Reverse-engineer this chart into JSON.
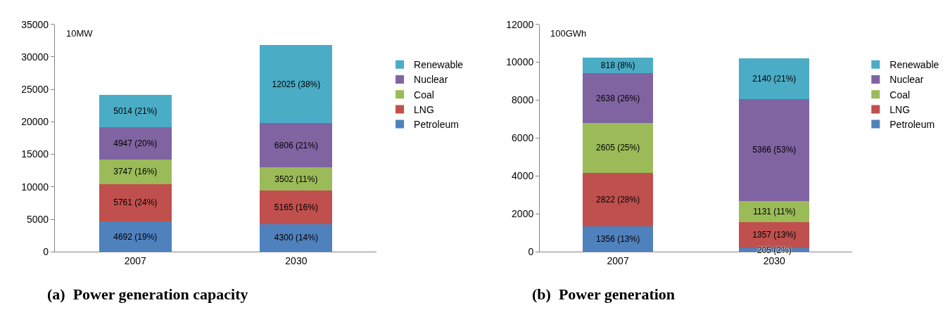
{
  "chart_data": [
    {
      "type": "bar",
      "title": "(a)  Power generation capacity",
      "ylabel": "10MW",
      "categories": [
        "2007",
        "2030"
      ],
      "stacked": true,
      "ylim": [
        0,
        35000
      ],
      "yticks": [
        0,
        5000,
        10000,
        15000,
        20000,
        25000,
        30000,
        35000
      ],
      "legend": "right",
      "series": [
        {
          "name": "Petroleum",
          "color": "#4f81bd",
          "values": [
            4692,
            4300
          ],
          "value_labels": [
            "4692 (19%)",
            "4300 (14%)"
          ]
        },
        {
          "name": "LNG",
          "color": "#c0504d",
          "values": [
            5761,
            5165
          ],
          "value_labels": [
            "5761 (24%)",
            "5165 (16%)"
          ]
        },
        {
          "name": "Coal",
          "color": "#9bbb59",
          "values": [
            3747,
            3502
          ],
          "value_labels": [
            "3747 (16%)",
            "3502 (11%)"
          ]
        },
        {
          "name": "Nuclear",
          "color": "#8064a2",
          "values": [
            4947,
            6806
          ],
          "value_labels": [
            "4947 (20%)",
            "6806 (21%)"
          ]
        },
        {
          "name": "Renewable",
          "color": "#4bacc6",
          "values": [
            5014,
            12025
          ],
          "value_labels": [
            "5014 (21%)",
            "12025 (38%)"
          ]
        }
      ]
    },
    {
      "type": "bar",
      "title": "(b)  Power generation",
      "ylabel": "100GWh",
      "categories": [
        "2007",
        "2030"
      ],
      "stacked": true,
      "ylim": [
        0,
        12000
      ],
      "yticks": [
        0,
        2000,
        4000,
        6000,
        8000,
        10000,
        12000
      ],
      "legend": "right",
      "series": [
        {
          "name": "Petroleum",
          "color": "#4f81bd",
          "values": [
            1356,
            205
          ],
          "value_labels": [
            "1356 (13%)",
            "205 (2%)"
          ]
        },
        {
          "name": "LNG",
          "color": "#c0504d",
          "values": [
            2822,
            1357
          ],
          "value_labels": [
            "2822 (28%)",
            "1357 (13%)"
          ]
        },
        {
          "name": "Coal",
          "color": "#9bbb59",
          "values": [
            2605,
            1131
          ],
          "value_labels": [
            "2605 (25%)",
            "1131 (11%)"
          ]
        },
        {
          "name": "Nuclear",
          "color": "#8064a2",
          "values": [
            2638,
            5366
          ],
          "value_labels": [
            "2638 (26%)",
            "5366 (53%)"
          ]
        },
        {
          "name": "Renewable",
          "color": "#4bacc6",
          "values": [
            818,
            2140
          ],
          "value_labels": [
            "818 (8%)",
            "2140 (21%)"
          ]
        }
      ]
    }
  ]
}
